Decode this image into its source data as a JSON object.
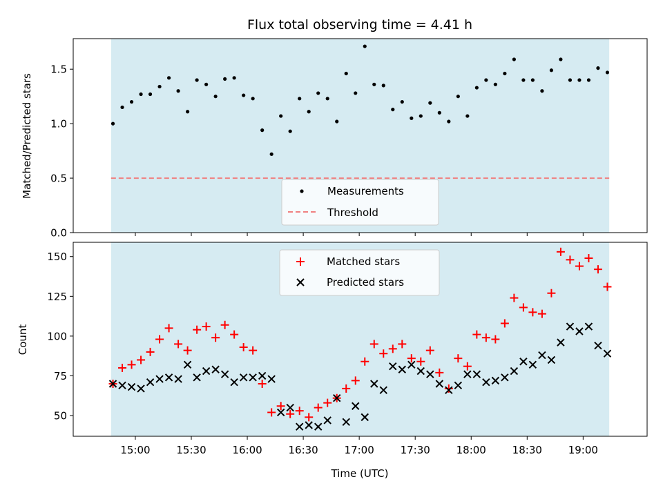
{
  "chart_data": [
    {
      "type": "scatter",
      "title": "Flux total observing time = 4.41 h",
      "ylabel": "Matched/Predicted stars",
      "xlabel": "",
      "ylim": [
        0,
        1.78
      ],
      "yticks": [
        "0.0",
        "0.5",
        "1.0",
        "1.5"
      ],
      "observing_window": [
        "14:47",
        "19:14"
      ],
      "threshold": 0.5,
      "legend": {
        "position": "lower-center",
        "entries": [
          "Measurements",
          "Threshold"
        ]
      },
      "series": [
        {
          "name": "Measurements",
          "x": [
            "14:48",
            "14:53",
            "14:58",
            "15:03",
            "15:08",
            "15:13",
            "15:18",
            "15:23",
            "15:28",
            "15:33",
            "15:38",
            "15:43",
            "15:48",
            "15:53",
            "15:58",
            "16:03",
            "16:08",
            "16:13",
            "16:18",
            "16:23",
            "16:28",
            "16:33",
            "16:38",
            "16:43",
            "16:48",
            "16:53",
            "16:58",
            "17:03",
            "17:08",
            "17:13",
            "17:18",
            "17:23",
            "17:28",
            "17:33",
            "17:38",
            "17:43",
            "17:48",
            "17:53",
            "17:58",
            "18:03",
            "18:08",
            "18:13",
            "18:18",
            "18:23",
            "18:28",
            "18:33",
            "18:38",
            "18:43",
            "18:48",
            "18:53",
            "18:58",
            "19:03",
            "19:08",
            "19:13"
          ],
          "values": [
            1.0,
            1.15,
            1.2,
            1.27,
            1.27,
            1.34,
            1.42,
            1.3,
            1.11,
            1.4,
            1.36,
            1.25,
            1.41,
            1.42,
            1.26,
            1.23,
            0.94,
            0.72,
            1.07,
            0.93,
            1.23,
            1.11,
            1.28,
            1.23,
            1.02,
            1.46,
            1.28,
            1.71,
            1.36,
            1.35,
            1.13,
            1.2,
            1.05,
            1.07,
            1.19,
            1.1,
            1.02,
            1.25,
            1.07,
            1.33,
            1.4,
            1.36,
            1.46,
            1.59,
            1.4,
            1.4,
            1.3,
            1.49,
            1.59,
            1.4,
            1.4,
            1.4,
            1.51,
            1.47
          ]
        },
        {
          "name": "Threshold",
          "values": [
            0.5
          ]
        }
      ]
    },
    {
      "type": "scatter",
      "title": "",
      "xlabel": "Time (UTC)",
      "ylabel": "Count",
      "ylim": [
        37,
        159
      ],
      "yticks": [
        "50",
        "75",
        "100",
        "125",
        "150"
      ],
      "xtick_labels": [
        "15:00",
        "15:30",
        "16:00",
        "16:30",
        "17:00",
        "17:30",
        "18:00",
        "18:30",
        "19:00"
      ],
      "legend": {
        "position": "upper-center",
        "entries": [
          "Matched stars",
          "Predicted stars"
        ]
      },
      "series": [
        {
          "name": "Matched stars",
          "x": [
            "14:48",
            "14:53",
            "14:58",
            "15:03",
            "15:08",
            "15:13",
            "15:18",
            "15:23",
            "15:28",
            "15:33",
            "15:38",
            "15:43",
            "15:48",
            "15:53",
            "15:58",
            "16:03",
            "16:08",
            "16:13",
            "16:18",
            "16:23",
            "16:28",
            "16:33",
            "16:38",
            "16:43",
            "16:48",
            "16:53",
            "16:58",
            "17:03",
            "17:08",
            "17:13",
            "17:18",
            "17:23",
            "17:28",
            "17:33",
            "17:38",
            "17:43",
            "17:48",
            "17:53",
            "17:58",
            "18:03",
            "18:08",
            "18:13",
            "18:18",
            "18:23",
            "18:28",
            "18:33",
            "18:38",
            "18:43",
            "18:48",
            "18:53",
            "18:58",
            "19:03",
            "19:08",
            "19:13"
          ],
          "values": [
            70,
            80,
            82,
            85,
            90,
            98,
            105,
            95,
            91,
            104,
            106,
            99,
            107,
            101,
            93,
            91,
            70,
            52,
            56,
            51,
            53,
            49,
            55,
            58,
            61,
            67,
            72,
            84,
            95,
            89,
            92,
            95,
            86,
            84,
            91,
            77,
            67,
            86,
            81,
            101,
            99,
            98,
            108,
            124,
            118,
            115,
            114,
            127,
            153,
            148,
            144,
            149,
            142,
            131
          ]
        },
        {
          "name": "Predicted stars",
          "x": [
            "14:48",
            "14:53",
            "14:58",
            "15:03",
            "15:08",
            "15:13",
            "15:18",
            "15:23",
            "15:28",
            "15:33",
            "15:38",
            "15:43",
            "15:48",
            "15:53",
            "15:58",
            "16:03",
            "16:08",
            "16:13",
            "16:18",
            "16:23",
            "16:28",
            "16:33",
            "16:38",
            "16:43",
            "16:48",
            "16:53",
            "16:58",
            "17:03",
            "17:08",
            "17:13",
            "17:18",
            "17:23",
            "17:28",
            "17:33",
            "17:38",
            "17:43",
            "17:48",
            "17:53",
            "17:58",
            "18:03",
            "18:08",
            "18:13",
            "18:18",
            "18:23",
            "18:28",
            "18:33",
            "18:38",
            "18:43",
            "18:48",
            "18:53",
            "18:58",
            "19:03",
            "19:08",
            "19:13"
          ],
          "values": [
            70,
            69,
            68,
            67,
            71,
            73,
            74,
            73,
            82,
            74,
            78,
            79,
            76,
            71,
            74,
            74,
            75,
            73,
            52,
            55,
            43,
            44,
            43,
            47,
            61,
            46,
            56,
            49,
            70,
            66,
            81,
            79,
            82,
            78,
            76,
            70,
            66,
            69,
            76,
            76,
            71,
            72,
            74,
            78,
            84,
            82,
            88,
            85,
            96,
            106,
            103,
            106,
            94,
            89
          ]
        }
      ]
    }
  ]
}
